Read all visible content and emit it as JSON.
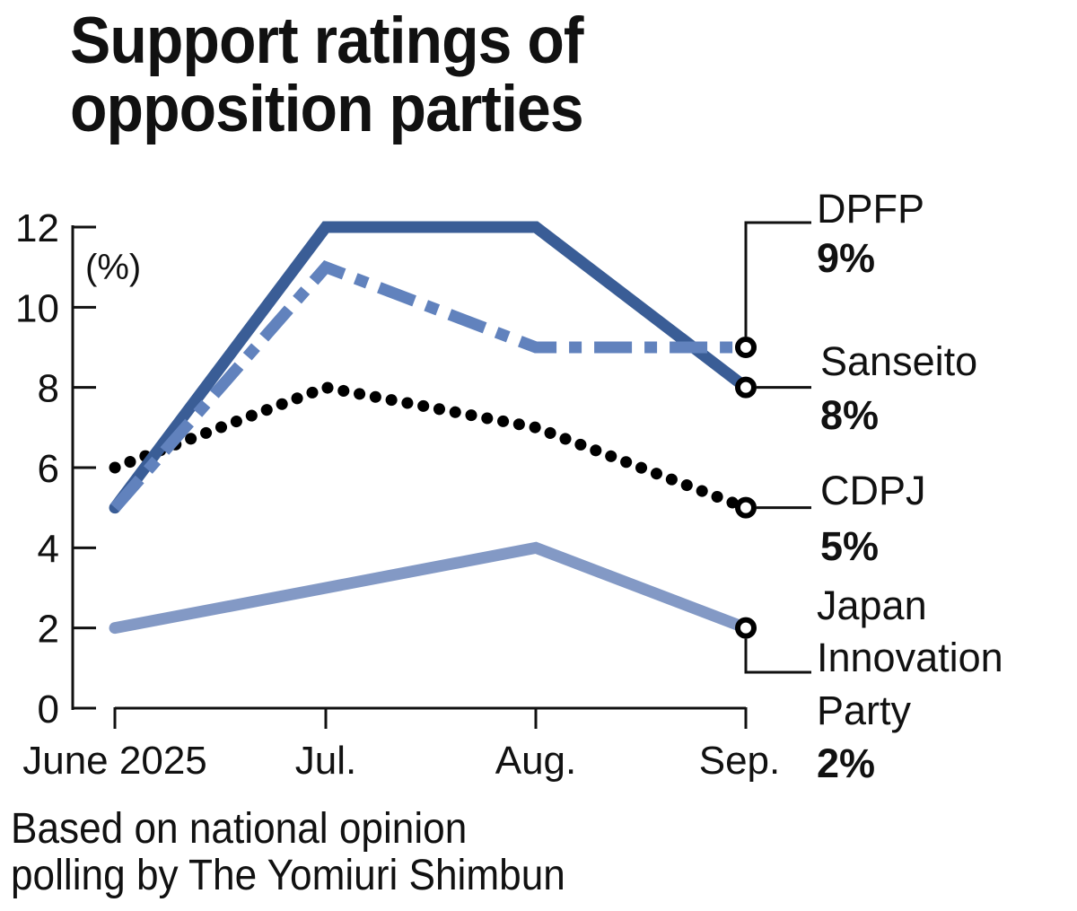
{
  "chart_data": {
    "type": "line",
    "title": "Support ratings of opposition parties",
    "unit_label": "(%)",
    "xlabel": "",
    "ylabel": "",
    "categories": [
      "June 2025",
      "Jul.",
      "Aug.",
      "Sep."
    ],
    "yticks": [
      0,
      2,
      4,
      6,
      8,
      10,
      12
    ],
    "ylim": [
      0,
      12
    ],
    "grid": false,
    "series": [
      {
        "name": "DPFP",
        "values": [
          5,
          11,
          9,
          9
        ],
        "end_label": "9%",
        "color": "#6182bd",
        "style": "dash-dot"
      },
      {
        "name": "Sanseito",
        "values": [
          5,
          12,
          12,
          8
        ],
        "end_label": "8%",
        "color": "#3a5d96",
        "style": "solid"
      },
      {
        "name": "CDPJ",
        "values": [
          6,
          8,
          7,
          5
        ],
        "end_label": "5%",
        "color": "#000000",
        "style": "dotted"
      },
      {
        "name": "Japan Innovation Party",
        "name_lines": [
          "Japan",
          "Innovation",
          "Party"
        ],
        "values": [
          2,
          3,
          4,
          2
        ],
        "end_label": "2%",
        "color": "#8399c5",
        "style": "solid"
      }
    ],
    "source_note": [
      "Based on national opinion",
      "polling by The Yomiuri Shimbun"
    ]
  }
}
